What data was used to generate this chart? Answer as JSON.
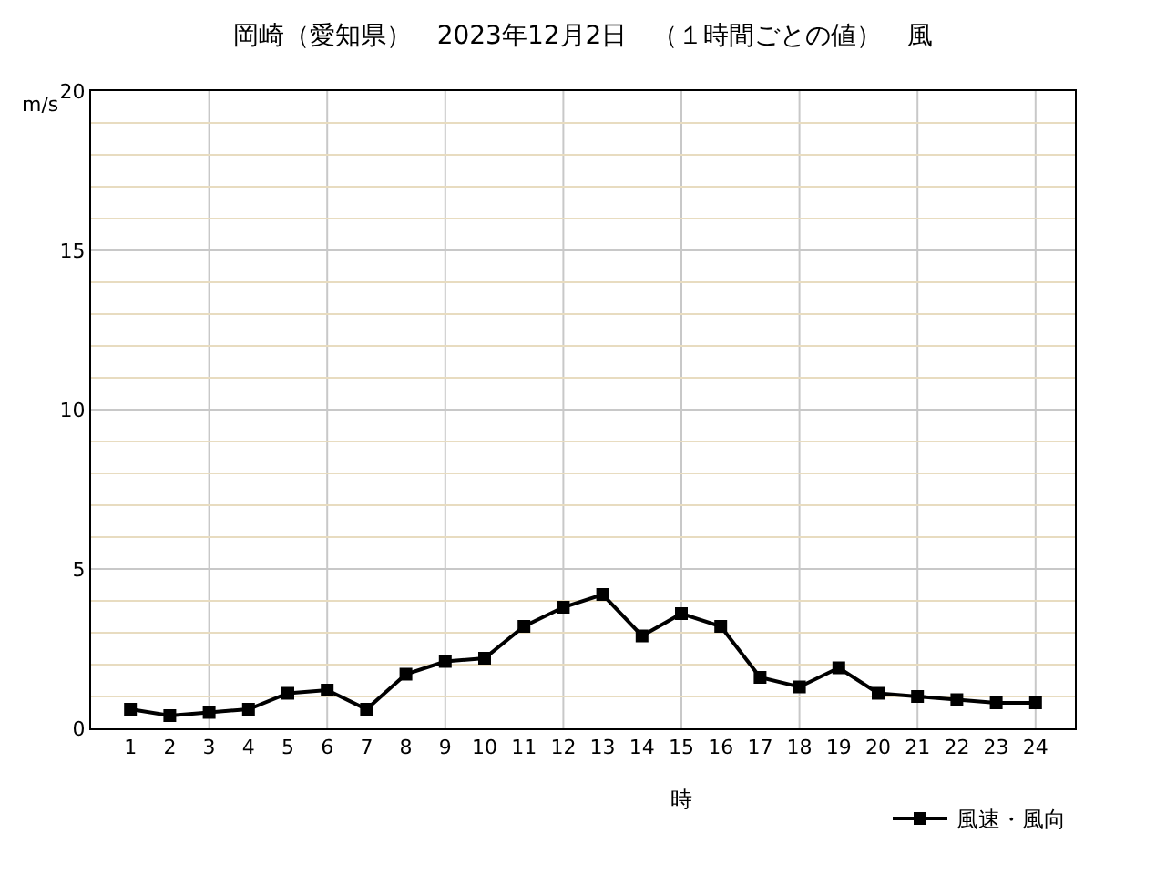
{
  "chart_data": {
    "type": "line",
    "title": "岡崎（愛知県）　2023年12月2日　（１時間ごとの値）　風",
    "xlabel": "時",
    "ylabel": "m/s",
    "x": [
      1,
      2,
      3,
      4,
      5,
      6,
      7,
      8,
      9,
      10,
      11,
      12,
      13,
      14,
      15,
      16,
      17,
      18,
      19,
      20,
      21,
      22,
      23,
      24
    ],
    "series": [
      {
        "name": "風速・風向",
        "color": "#000000",
        "values": [
          0.6,
          0.4,
          0.5,
          0.6,
          1.1,
          1.2,
          0.6,
          1.7,
          2.1,
          2.2,
          3.2,
          3.8,
          4.2,
          2.9,
          3.6,
          3.2,
          1.6,
          1.3,
          1.9,
          1.1,
          1.0,
          0.9,
          0.8,
          0.8
        ]
      }
    ],
    "xlim": [
      0,
      25
    ],
    "xticks": [
      1,
      2,
      3,
      4,
      5,
      6,
      7,
      8,
      9,
      10,
      11,
      12,
      13,
      14,
      15,
      16,
      17,
      18,
      19,
      20,
      21,
      22,
      23,
      24
    ],
    "ylim": [
      0,
      20
    ],
    "yticks": [
      0,
      5,
      10,
      15,
      20
    ],
    "grid": true,
    "marker": "square",
    "line_style": "solid",
    "legend": "bottom right"
  }
}
